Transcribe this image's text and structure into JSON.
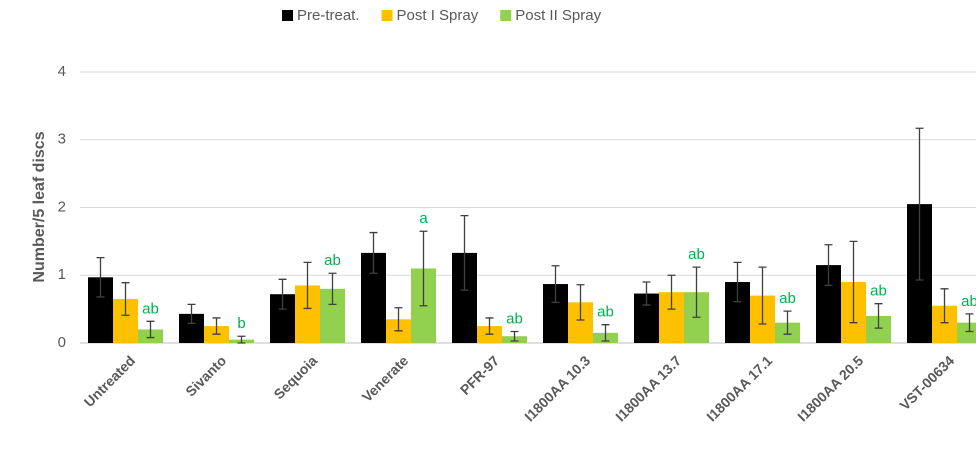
{
  "chart_data": {
    "type": "bar",
    "y_label": "Number/5 leaf discs",
    "categories": [
      "Untreated",
      "Sivanto",
      "Sequoia",
      "Venerate",
      "PFR-97",
      "I1800AA 10.3",
      "I1800AA 13.7",
      "I1800AA 17.1",
      "I1800AA 20.5",
      "VST-00634"
    ],
    "series": [
      {
        "name": "Pre-treat.",
        "color": "#000000",
        "values": [
          0.97,
          0.43,
          0.72,
          1.33,
          1.33,
          0.87,
          0.73,
          0.9,
          1.15,
          2.05
        ],
        "errors": [
          0.29,
          0.14,
          0.22,
          0.3,
          0.55,
          0.27,
          0.17,
          0.29,
          0.3,
          1.12
        ]
      },
      {
        "name": "Post I Spray",
        "color": "#FFC000",
        "values": [
          0.65,
          0.25,
          0.85,
          0.35,
          0.25,
          0.6,
          0.75,
          0.7,
          0.9,
          0.55
        ],
        "errors": [
          0.24,
          0.12,
          0.34,
          0.17,
          0.12,
          0.26,
          0.25,
          0.42,
          0.6,
          0.25
        ]
      },
      {
        "name": "Post II Spray",
        "color": "#92D050",
        "values": [
          0.2,
          0.05,
          0.8,
          1.1,
          0.1,
          0.15,
          0.75,
          0.3,
          0.4,
          0.3
        ],
        "errors": [
          0.12,
          0.05,
          0.23,
          0.55,
          0.07,
          0.12,
          0.37,
          0.17,
          0.18,
          0.13
        ]
      }
    ],
    "annotations": [
      "ab",
      "b",
      "ab",
      "a",
      "ab",
      "ab",
      "ab",
      "ab",
      "ab",
      "ab"
    ],
    "annotation_color": "#00B050",
    "ylim": [
      0,
      4
    ],
    "yticks": [
      0,
      1,
      2,
      3,
      4
    ],
    "grid": true,
    "legend": "top"
  }
}
